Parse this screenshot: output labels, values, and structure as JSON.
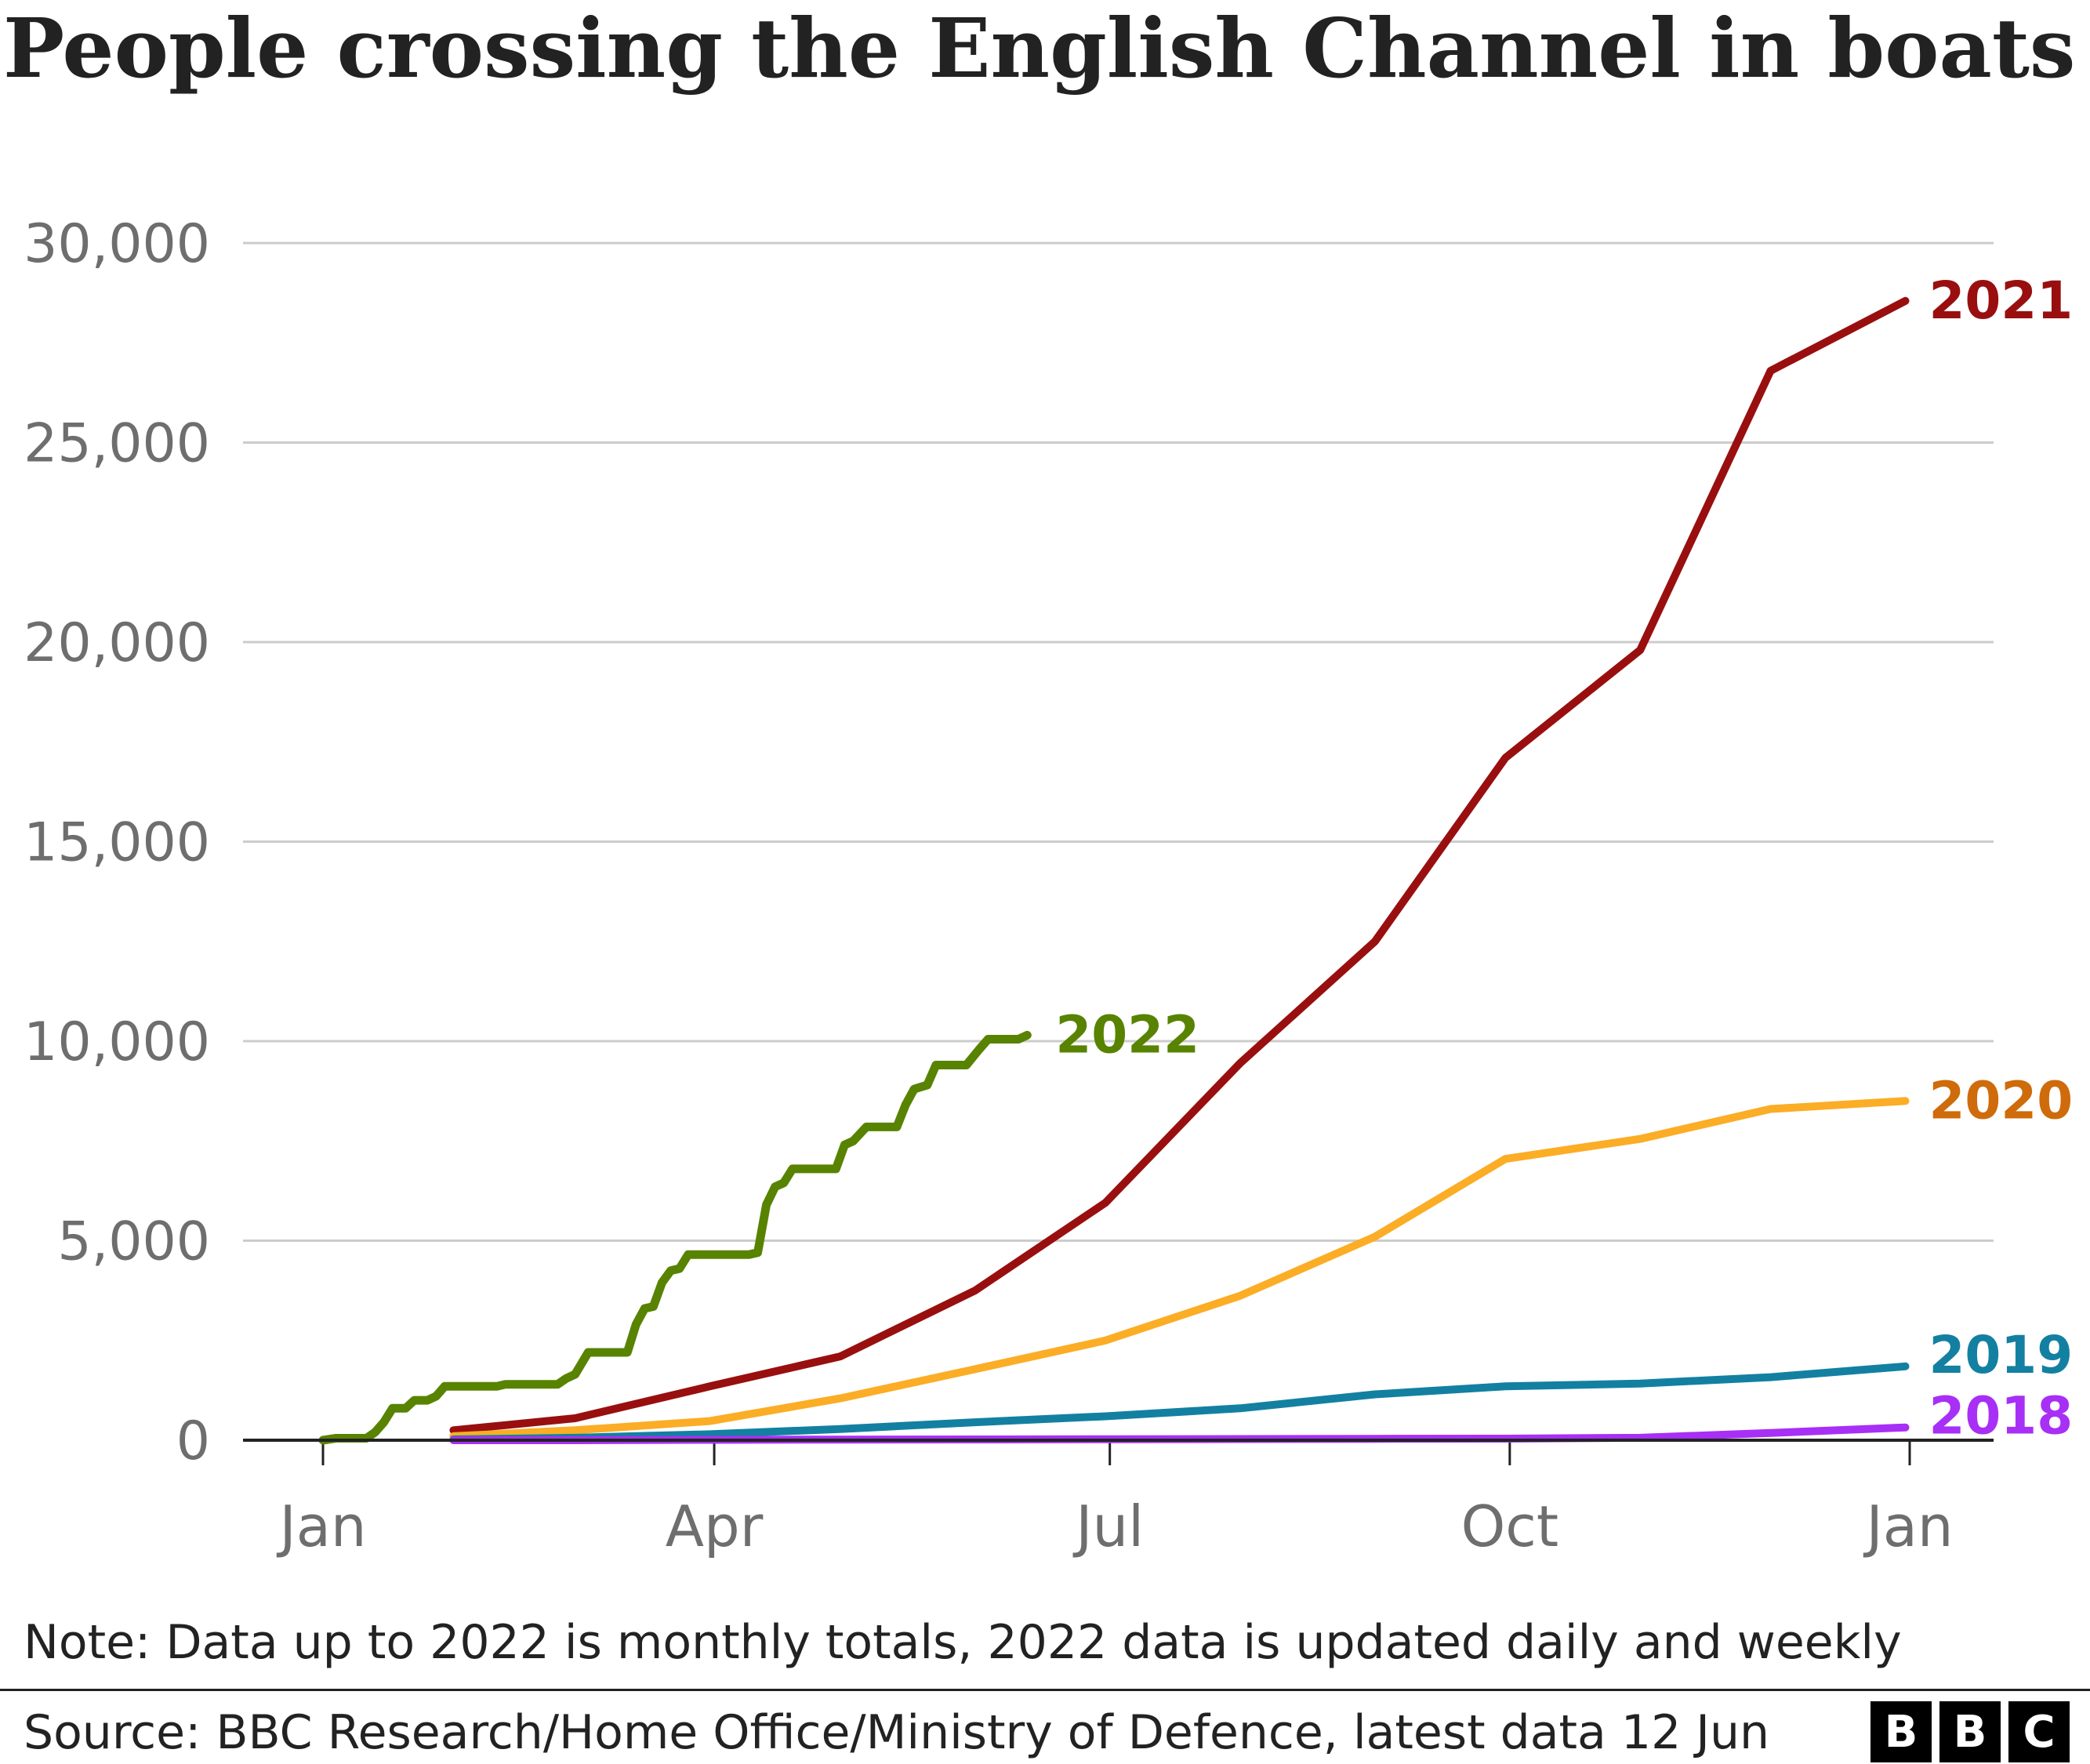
{
  "chart_data": {
    "type": "line",
    "title": "People crossing the English Channel in boats",
    "xlabel": "",
    "ylabel": "",
    "ylim": [
      0,
      30000
    ],
    "y_ticks": [
      0,
      5000,
      10000,
      15000,
      20000,
      25000,
      30000
    ],
    "y_tick_labels": [
      "0",
      "5,000",
      "10,000",
      "15,000",
      "20,000",
      "25,000",
      "30,000"
    ],
    "x_tick_labels": [
      "Jan",
      "Apr",
      "Jul",
      "Oct",
      "Jan"
    ],
    "x_axis_dates": [
      "2022-01-01",
      "2022-04-01",
      "2022-07-01",
      "2022-10-01",
      "2023-01-01"
    ],
    "grid": true,
    "legend": "direct labels at line ends",
    "series": [
      {
        "name": "2021",
        "color": "#990f0f",
        "points": [
          [
            "2022-01-31",
            250
          ],
          [
            "2022-02-28",
            550
          ],
          [
            "2022-03-31",
            1350
          ],
          [
            "2022-04-30",
            2100
          ],
          [
            "2022-05-31",
            3750
          ],
          [
            "2022-06-30",
            5950
          ],
          [
            "2022-07-31",
            9450
          ],
          [
            "2022-08-31",
            12500
          ],
          [
            "2022-09-30",
            17100
          ],
          [
            "2022-10-31",
            19800
          ],
          [
            "2022-11-30",
            26800
          ],
          [
            "2022-12-31",
            28550
          ]
        ]
      },
      {
        "name": "2020",
        "color": "#fbad26",
        "label_color": "#cf6b0a",
        "points": [
          [
            "2022-01-31",
            100
          ],
          [
            "2022-02-28",
            250
          ],
          [
            "2022-03-31",
            480
          ],
          [
            "2022-04-30",
            1050
          ],
          [
            "2022-05-31",
            1780
          ],
          [
            "2022-06-30",
            2500
          ],
          [
            "2022-07-31",
            3620
          ],
          [
            "2022-08-31",
            5100
          ],
          [
            "2022-09-30",
            7050
          ],
          [
            "2022-10-31",
            7550
          ],
          [
            "2022-11-30",
            8300
          ],
          [
            "2022-12-31",
            8500
          ]
        ]
      },
      {
        "name": "2019",
        "color": "#1380a1",
        "points": [
          [
            "2022-01-31",
            20
          ],
          [
            "2022-02-28",
            60
          ],
          [
            "2022-03-31",
            150
          ],
          [
            "2022-04-30",
            280
          ],
          [
            "2022-05-31",
            450
          ],
          [
            "2022-06-30",
            600
          ],
          [
            "2022-07-31",
            800
          ],
          [
            "2022-08-31",
            1150
          ],
          [
            "2022-09-30",
            1350
          ],
          [
            "2022-10-31",
            1420
          ],
          [
            "2022-11-30",
            1580
          ],
          [
            "2022-12-31",
            1850
          ]
        ]
      },
      {
        "name": "2018",
        "color": "#a82ff5",
        "points": [
          [
            "2022-01-31",
            0
          ],
          [
            "2022-02-28",
            0
          ],
          [
            "2022-03-31",
            10
          ],
          [
            "2022-04-30",
            15
          ],
          [
            "2022-05-31",
            20
          ],
          [
            "2022-06-30",
            25
          ],
          [
            "2022-07-31",
            30
          ],
          [
            "2022-08-31",
            35
          ],
          [
            "2022-09-30",
            40
          ],
          [
            "2022-10-31",
            60
          ],
          [
            "2022-11-30",
            180
          ],
          [
            "2022-12-31",
            320
          ]
        ]
      },
      {
        "name": "2022",
        "color": "#588300",
        "points": [
          [
            "2022-01-01",
            0
          ],
          [
            "2022-01-04",
            50
          ],
          [
            "2022-01-11",
            50
          ],
          [
            "2022-01-13",
            200
          ],
          [
            "2022-01-15",
            450
          ],
          [
            "2022-01-17",
            800
          ],
          [
            "2022-01-20",
            800
          ],
          [
            "2022-01-22",
            1000
          ],
          [
            "2022-01-25",
            1000
          ],
          [
            "2022-01-27",
            1100
          ],
          [
            "2022-01-29",
            1350
          ],
          [
            "2022-02-10",
            1350
          ],
          [
            "2022-02-12",
            1400
          ],
          [
            "2022-02-24",
            1400
          ],
          [
            "2022-02-26",
            1550
          ],
          [
            "2022-02-28",
            1650
          ],
          [
            "2022-03-03",
            2200
          ],
          [
            "2022-03-12",
            2200
          ],
          [
            "2022-03-14",
            2900
          ],
          [
            "2022-03-16",
            3300
          ],
          [
            "2022-03-18",
            3350
          ],
          [
            "2022-03-20",
            3950
          ],
          [
            "2022-03-22",
            4250
          ],
          [
            "2022-03-24",
            4300
          ],
          [
            "2022-03-26",
            4650
          ],
          [
            "2022-04-09",
            4650
          ],
          [
            "2022-04-11",
            4700
          ],
          [
            "2022-04-13",
            5900
          ],
          [
            "2022-04-15",
            6350
          ],
          [
            "2022-04-17",
            6450
          ],
          [
            "2022-04-19",
            6800
          ],
          [
            "2022-04-29",
            6800
          ],
          [
            "2022-05-01",
            7400
          ],
          [
            "2022-05-03",
            7500
          ],
          [
            "2022-05-06",
            7850
          ],
          [
            "2022-05-13",
            7850
          ],
          [
            "2022-05-15",
            8400
          ],
          [
            "2022-05-17",
            8800
          ],
          [
            "2022-05-20",
            8900
          ],
          [
            "2022-05-22",
            9400
          ],
          [
            "2022-05-29",
            9400
          ],
          [
            "2022-06-01",
            9800
          ],
          [
            "2022-06-03",
            10050
          ],
          [
            "2022-06-10",
            10050
          ],
          [
            "2022-06-12",
            10150
          ]
        ]
      }
    ],
    "note": "Note: Data up to 2022 is monthly totals, 2022 data is updated daily and weekly",
    "source": "Source: BBC Research/Home Office/Ministry of Defence, latest data 12 Jun"
  },
  "logo": [
    "B",
    "B",
    "C"
  ],
  "colors": {
    "text": "#222222",
    "tick_text": "#6e6e6e",
    "grid": "#cccccc",
    "baseline": "#222222"
  }
}
